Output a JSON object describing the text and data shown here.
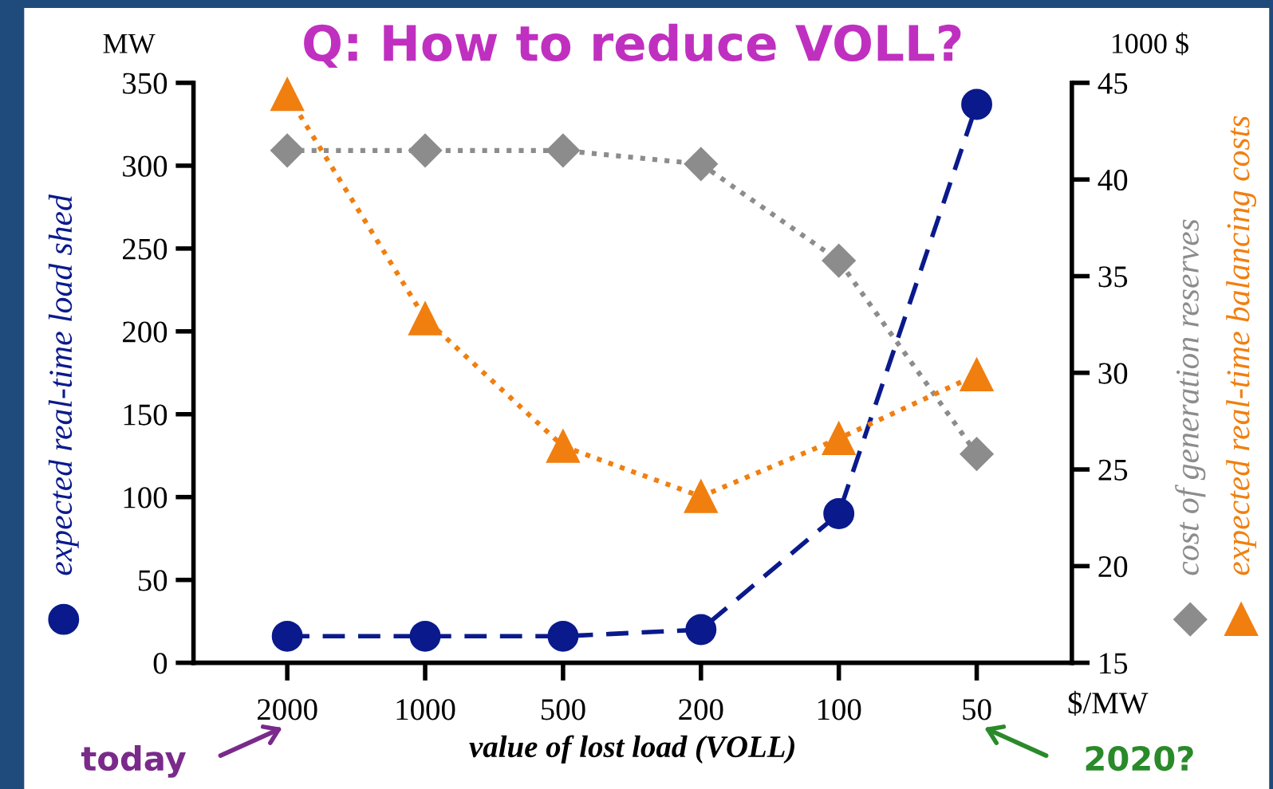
{
  "chart_data": {
    "type": "line",
    "title": "Q: How to reduce VOLL?",
    "xlabel": "value of lost load (VOLL)",
    "ylabel": "MW",
    "y2label": "1000 $",
    "categories": [
      "2000",
      "1000",
      "500",
      "200",
      "100",
      "50"
    ],
    "series": [
      {
        "name": "expected real-time load shed",
        "color": "#0a1a8c",
        "values": [
          16,
          16,
          16,
          20,
          90,
          337
        ],
        "marker": "circle",
        "line_style": "dashed"
      },
      {
        "name": "cost of generation reserves",
        "color": "#8c8c8c",
        "values": [
          41.5,
          41.5,
          41.5,
          40.8,
          35.8,
          25.8
        ],
        "axis": "y2",
        "marker": "diamond",
        "line_style": "dotted"
      },
      {
        "name": "expected real-time balancing costs",
        "color": "#f07f10",
        "values": [
          44.4,
          32.8,
          26.2,
          23.6,
          26.6,
          29.9
        ],
        "axis": "y2",
        "marker": "triangle",
        "line_style": "dotted"
      }
    ],
    "ylim": [
      0,
      350
    ],
    "yticks": [
      0,
      50,
      100,
      150,
      200,
      250,
      300,
      350
    ],
    "y2lim": [
      15,
      45
    ],
    "y2ticks": [
      15,
      20,
      25,
      30,
      35,
      40,
      45
    ],
    "grid": false,
    "legend": false,
    "annotations": [
      "$/MW",
      "today",
      "2020?"
    ]
  }
}
